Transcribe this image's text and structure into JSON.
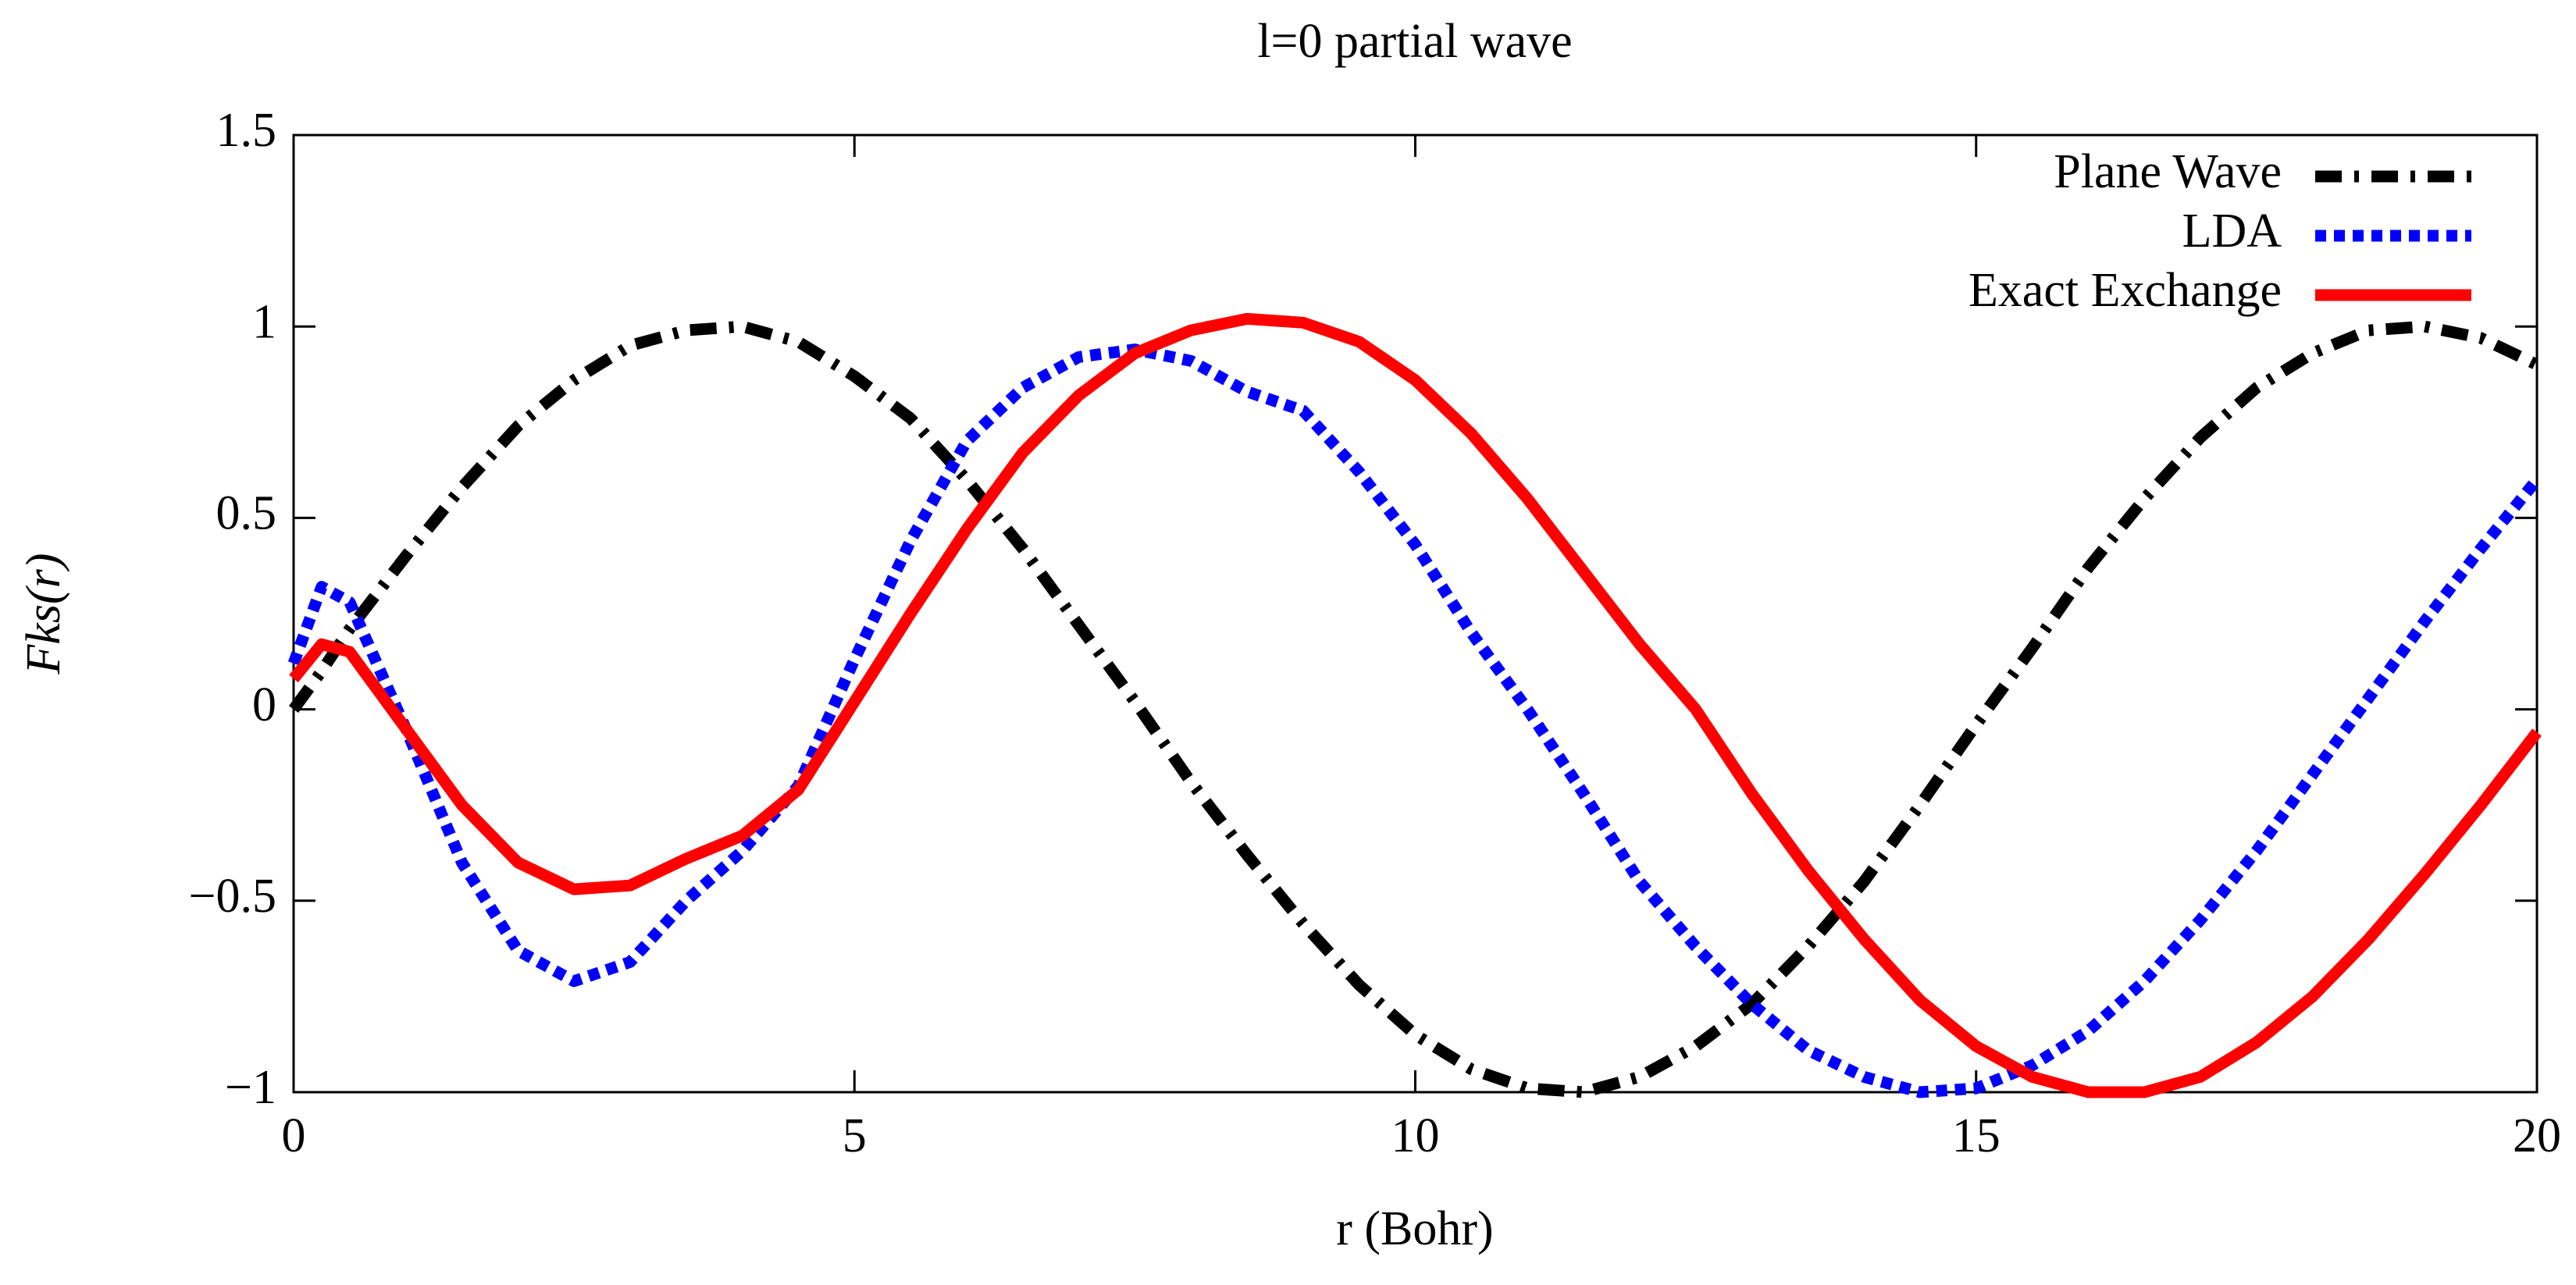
{
  "chart_data": {
    "type": "line",
    "title": "l=0 partial wave",
    "xlabel": "r (Bohr)",
    "ylabel": "Fks(r)",
    "x": [
      0,
      0.25,
      0.5,
      1,
      1.5,
      2,
      2.5,
      3,
      3.5,
      4,
      4.5,
      5,
      5.5,
      6,
      6.5,
      7,
      7.5,
      8,
      8.5,
      9,
      9.5,
      10,
      10.5,
      11,
      11.5,
      12,
      12.5,
      13,
      13.5,
      14,
      14.5,
      15,
      15.5,
      16,
      16.5,
      17,
      17.5,
      18,
      18.5,
      19,
      19.5,
      20
    ],
    "series": [
      {
        "name": "Plane Wave",
        "color": "#000000",
        "dash": "dashdot",
        "values": [
          0,
          0.1,
          0.21,
          0.4,
          0.58,
          0.74,
          0.86,
          0.95,
          0.99,
          1.0,
          0.96,
          0.87,
          0.76,
          0.6,
          0.42,
          0.22,
          0.02,
          -0.19,
          -0.38,
          -0.56,
          -0.72,
          -0.85,
          -0.94,
          -0.99,
          -1.0,
          -0.96,
          -0.88,
          -0.77,
          -0.62,
          -0.45,
          -0.25,
          -0.04,
          0.16,
          0.37,
          0.55,
          0.71,
          0.84,
          0.93,
          0.99,
          1.0,
          0.97,
          0.9
        ]
      },
      {
        "name": "LDA",
        "color": "#0000ff",
        "dash": "dot",
        "values": [
          0.12,
          0.32,
          0.28,
          -0.05,
          -0.4,
          -0.63,
          -0.71,
          -0.66,
          -0.5,
          -0.37,
          -0.2,
          0.13,
          0.44,
          0.7,
          0.84,
          0.92,
          0.94,
          0.91,
          0.83,
          0.78,
          0.62,
          0.43,
          0.2,
          0.0,
          -0.22,
          -0.45,
          -0.62,
          -0.77,
          -0.89,
          -0.96,
          -1.0,
          -0.99,
          -0.93,
          -0.84,
          -0.71,
          -0.55,
          -0.37,
          -0.17,
          0.03,
          0.23,
          0.42,
          0.6
        ]
      },
      {
        "name": "Exact Exchange",
        "color": "#ff0000",
        "dash": "solid",
        "values": [
          0.08,
          0.17,
          0.15,
          -0.05,
          -0.25,
          -0.4,
          -0.47,
          -0.46,
          -0.39,
          -0.33,
          -0.21,
          0.02,
          0.25,
          0.47,
          0.67,
          0.82,
          0.93,
          0.99,
          1.02,
          1.01,
          0.96,
          0.86,
          0.72,
          0.55,
          0.36,
          0.17,
          0.0,
          -0.22,
          -0.42,
          -0.6,
          -0.76,
          -0.88,
          -0.96,
          -1.0,
          -1.0,
          -0.96,
          -0.87,
          -0.75,
          -0.6,
          -0.43,
          -0.25,
          -0.06
        ]
      }
    ],
    "xlim": [
      0,
      20
    ],
    "xticks": [
      0,
      5,
      10,
      15,
      20
    ],
    "ylim": [
      -1,
      1.5
    ],
    "yticks": [
      {
        "value": -1,
        "label": "−1"
      },
      {
        "value": -0.5,
        "label": "−0.5"
      },
      0,
      0.5,
      1,
      1.5
    ],
    "grid": false,
    "legend": "upper right"
  }
}
